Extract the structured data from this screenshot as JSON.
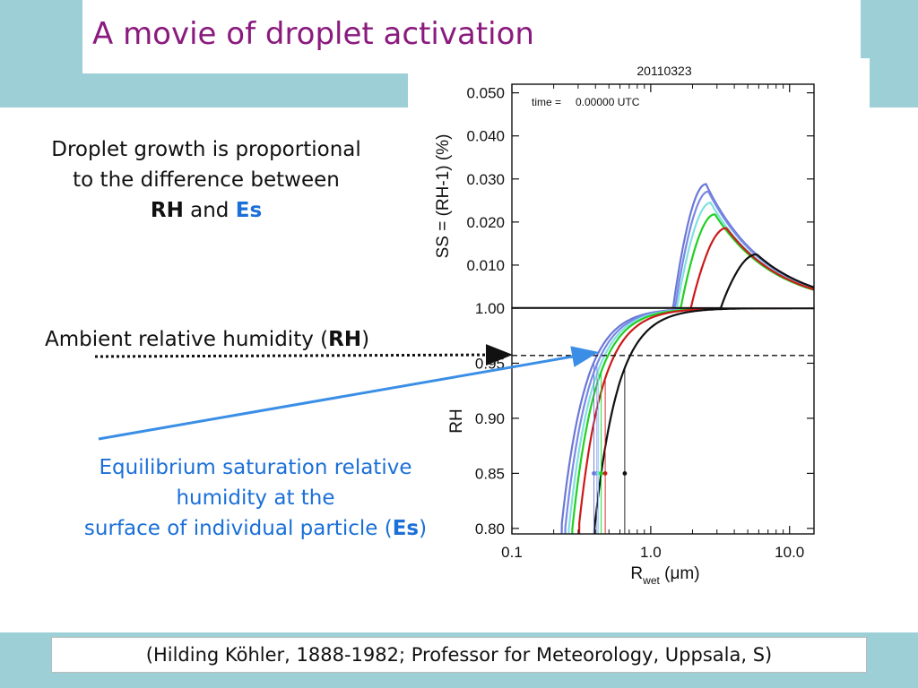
{
  "slide": {
    "title": "A movie of droplet activation",
    "text1": {
      "line1": "Droplet growth is proportional",
      "line2": "to the difference between",
      "rh": "RH",
      "and": "and",
      "es": "Es"
    },
    "text2": {
      "prefix": "Ambient relative humidity (",
      "rh": "RH",
      "suffix": ")"
    },
    "text3": {
      "line1": "Equilibrium saturation relative",
      "line2": "humidity at the",
      "line3_prefix": "surface of individual particle (",
      "es": "Es",
      "line3_suffix": ")"
    },
    "citation": "(Hilding Köhler, 1888-1982; Professor for Meteorology, Uppsala, S)",
    "colors": {
      "title": "#8a1a7e",
      "band": "#9ccfd6",
      "es_text": "#1a6fd8",
      "arrow": "#3a8ee6"
    }
  },
  "chart_data": {
    "type": "line",
    "title": "20110323",
    "annotation": {
      "label": "time =",
      "value": "0.00000 UTC"
    },
    "xlabel": "R",
    "xlabel_sub": "wet",
    "xlabel_unit": " (μm)",
    "xscale": "log",
    "xlim": [
      0.1,
      15
    ],
    "x_ticks": [
      "0.1",
      "1.0",
      "10.0"
    ],
    "top": {
      "ylabel": "SS = (RH-1) (%)",
      "ylim": [
        0,
        0.052
      ],
      "y_ticks": [
        "0.050",
        "0.040",
        "0.030",
        "0.020",
        "0.010"
      ],
      "y_tick_values": [
        0.05,
        0.04,
        0.03,
        0.02,
        0.01
      ]
    },
    "bottom": {
      "ylabel": "RH",
      "ylim": [
        0.795,
        1.0
      ],
      "y_ticks": [
        "1.00",
        "0.95",
        "0.90",
        "0.85",
        "0.80"
      ],
      "y_tick_values": [
        1.0,
        0.95,
        0.9,
        0.85,
        0.8
      ],
      "ambient_rh": 0.957
    },
    "series": [
      {
        "color": "#6a78d6",
        "dry_edge": 0.225,
        "r_crit": 2.5,
        "ss_peak": 0.0288,
        "r_start": 1.45,
        "rh_marker": 0.39
      },
      {
        "color": "#7a88e6",
        "dry_edge": 0.24,
        "r_crit": 2.6,
        "ss_peak": 0.0271,
        "r_start": 1.5,
        "rh_marker": 0.41
      },
      {
        "color": "#80e0e0",
        "dry_edge": 0.255,
        "r_crit": 2.7,
        "ss_peak": 0.0245,
        "r_start": 1.55,
        "rh_marker": 0.42
      },
      {
        "color": "#22d022",
        "dry_edge": 0.27,
        "r_crit": 2.9,
        "ss_peak": 0.0218,
        "r_start": 1.65,
        "rh_marker": 0.44
      },
      {
        "color": "#cc1a1a",
        "dry_edge": 0.3,
        "r_crit": 3.5,
        "ss_peak": 0.0186,
        "r_start": 1.95,
        "rh_marker": 0.47
      },
      {
        "color": "#111111",
        "dry_edge": 0.39,
        "r_crit": 5.8,
        "ss_peak": 0.0125,
        "r_start": 3.2,
        "rh_marker": 0.65
      }
    ]
  }
}
